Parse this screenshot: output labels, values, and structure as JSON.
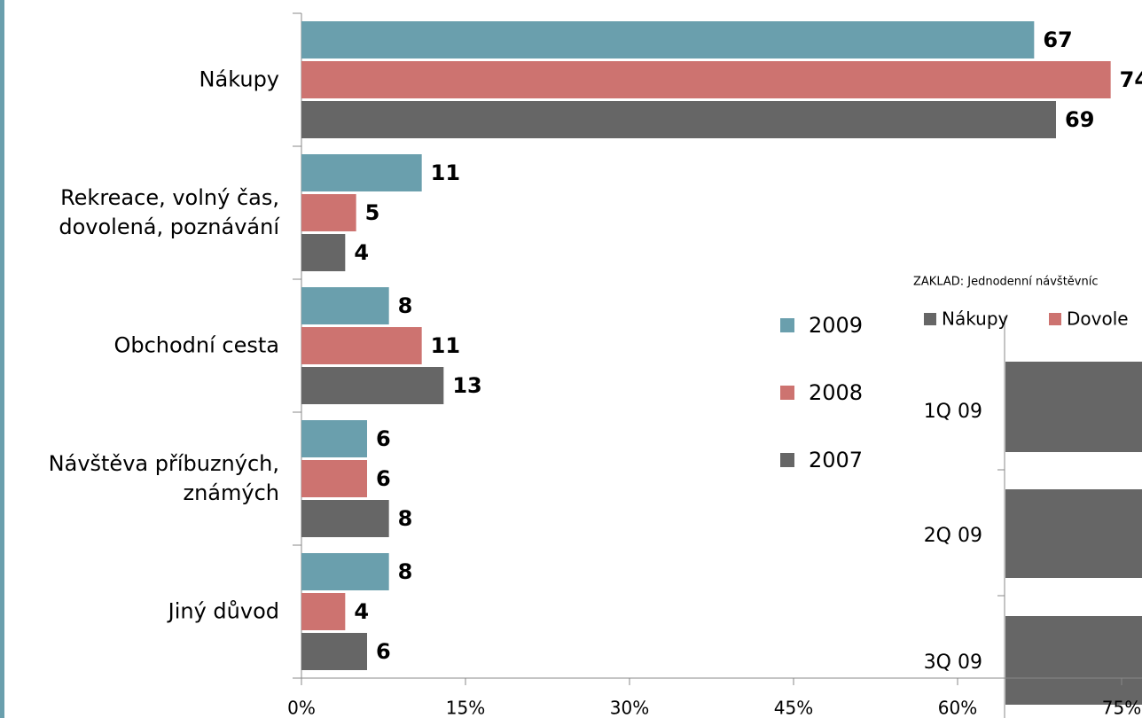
{
  "chart_data": [
    {
      "type": "bar",
      "orientation": "horizontal",
      "categories": [
        "Nákupy",
        "Rekreace, volný čas, dovolená, poznávání",
        "Obchodní cesta",
        "Návštěva příbuzných, známých",
        "Jiný důvod"
      ],
      "series": [
        {
          "name": "2009",
          "color": "#6a9fad",
          "values": [
            67,
            11,
            8,
            6,
            8
          ]
        },
        {
          "name": "2008",
          "color": "#cd7370",
          "values": [
            74,
            5,
            11,
            6,
            4
          ]
        },
        {
          "name": "2007",
          "color": "#666666",
          "values": [
            69,
            4,
            13,
            8,
            6
          ]
        }
      ],
      "xlim": [
        0,
        75
      ],
      "xticks": [
        {
          "value": 0,
          "label": "0%"
        },
        {
          "value": 15,
          "label": "15%"
        },
        {
          "value": 30,
          "label": "30%"
        },
        {
          "value": 45,
          "label": "45%"
        },
        {
          "value": 60,
          "label": "60%"
        },
        {
          "value": 75,
          "label": "75%"
        }
      ],
      "legend": "right"
    },
    {
      "type": "bar",
      "subtitle": "ZAKLAD: Jednodenní návštěvníc",
      "categories": [
        "1Q 09",
        "2Q 09",
        "3Q 09"
      ],
      "legend_entries": [
        {
          "name": "Nákupy",
          "color": "#666666"
        },
        {
          "name": "Dovole",
          "color": "#cd7370"
        }
      ]
    }
  ]
}
